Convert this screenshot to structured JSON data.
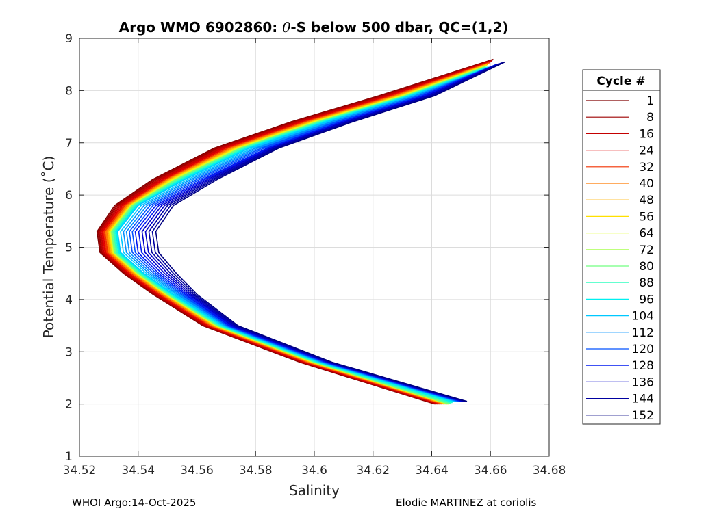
{
  "chart_data": {
    "type": "line",
    "title_prefix": "Argo WMO 6902860: ",
    "title_theta": "θ",
    "title_suffix": "-S below 500 dbar,  QC=(1,2)",
    "xlabel": "Salinity",
    "ylabel": "Potential Temperature (˚C)",
    "xlim": [
      34.52,
      34.68
    ],
    "ylim": [
      1,
      9
    ],
    "x_ticks": [
      "34.52",
      "34.54",
      "34.56",
      "34.58",
      "34.6",
      "34.62",
      "34.64",
      "34.66",
      "34.68"
    ],
    "y_ticks": [
      "1",
      "2",
      "3",
      "4",
      "5",
      "6",
      "7",
      "8",
      "9"
    ],
    "grid": true,
    "legend_title": "Cycle #",
    "legend_position": "right-outside",
    "legend_entries": [
      {
        "label": "1",
        "color": "#800000"
      },
      {
        "label": "8",
        "color": "#9e0000"
      },
      {
        "label": "16",
        "color": "#c40000"
      },
      {
        "label": "24",
        "color": "#e00000"
      },
      {
        "label": "32",
        "color": "#f23000"
      },
      {
        "label": "40",
        "color": "#ff7a00"
      },
      {
        "label": "48",
        "color": "#ffb000"
      },
      {
        "label": "56",
        "color": "#ffe000"
      },
      {
        "label": "64",
        "color": "#e0ff20"
      },
      {
        "label": "72",
        "color": "#a8ff50"
      },
      {
        "label": "80",
        "color": "#70ff80"
      },
      {
        "label": "88",
        "color": "#30ffc0"
      },
      {
        "label": "96",
        "color": "#00f0f0"
      },
      {
        "label": "104",
        "color": "#00c8ff"
      },
      {
        "label": "112",
        "color": "#0090ff"
      },
      {
        "label": "120",
        "color": "#0050ff"
      },
      {
        "label": "128",
        "color": "#0018f0"
      },
      {
        "label": "136",
        "color": "#0000c8"
      },
      {
        "label": "144",
        "color": "#0000a0"
      },
      {
        "label": "152",
        "color": "#000080"
      }
    ],
    "series": [
      {
        "x": [
          34.641,
          34.595,
          34.562,
          34.545,
          34.535,
          34.527,
          34.526,
          34.532,
          34.545,
          34.566,
          34.592,
          34.622,
          34.661
        ],
        "y": [
          2.0,
          2.8,
          3.5,
          4.1,
          4.5,
          4.9,
          5.3,
          5.8,
          6.3,
          6.9,
          7.4,
          7.9,
          8.6
        ]
      },
      {
        "x": [
          34.643,
          34.597,
          34.564,
          34.547,
          34.537,
          34.529,
          34.528,
          34.535,
          34.549,
          34.57,
          34.596,
          34.626,
          34.66
        ],
        "y": [
          2.0,
          2.8,
          3.5,
          4.1,
          4.5,
          4.9,
          5.3,
          5.8,
          6.3,
          6.9,
          7.4,
          7.9,
          8.55
        ]
      },
      {
        "x": [
          34.645,
          34.599,
          34.566,
          34.549,
          34.539,
          34.531,
          34.53,
          34.537,
          34.551,
          34.573,
          34.599,
          34.629,
          34.659
        ],
        "y": [
          2.0,
          2.8,
          3.5,
          4.1,
          4.5,
          4.9,
          5.3,
          5.8,
          6.3,
          6.9,
          7.4,
          7.9,
          8.5
        ]
      },
      {
        "x": [
          34.646,
          34.6,
          34.567,
          34.55,
          34.54,
          34.532,
          34.531,
          34.538,
          34.553,
          34.575,
          34.601,
          34.631,
          34.658
        ],
        "y": [
          2.0,
          2.8,
          3.5,
          4.1,
          4.5,
          4.9,
          5.3,
          5.8,
          6.3,
          6.9,
          7.4,
          7.9,
          8.45
        ]
      },
      {
        "x": [
          34.648,
          34.602,
          34.569,
          34.552,
          34.542,
          34.534,
          34.533,
          34.54,
          34.556,
          34.578,
          34.604,
          34.633,
          34.66
        ],
        "y": [
          2.05,
          2.8,
          3.5,
          4.1,
          4.5,
          4.9,
          5.3,
          5.8,
          6.3,
          6.9,
          7.4,
          7.9,
          8.45
        ]
      },
      {
        "x": [
          34.65,
          34.604,
          34.571,
          34.556,
          34.547,
          34.54,
          34.539,
          34.546,
          34.562,
          34.584,
          34.609,
          34.637,
          34.662
        ],
        "y": [
          2.05,
          2.8,
          3.5,
          4.1,
          4.5,
          4.9,
          5.3,
          5.8,
          6.3,
          6.9,
          7.4,
          7.9,
          8.5
        ]
      },
      {
        "x": [
          34.652,
          34.606,
          34.574,
          34.56,
          34.553,
          34.547,
          34.546,
          34.552,
          34.567,
          34.588,
          34.613,
          34.641,
          34.665
        ],
        "y": [
          2.05,
          2.8,
          3.5,
          4.1,
          4.5,
          4.9,
          5.3,
          5.8,
          6.3,
          6.9,
          7.4,
          7.9,
          8.55
        ]
      }
    ]
  },
  "footer": {
    "left": "WHOI Argo:14-Oct-2025",
    "right": "Elodie MARTINEZ at coriolis"
  }
}
